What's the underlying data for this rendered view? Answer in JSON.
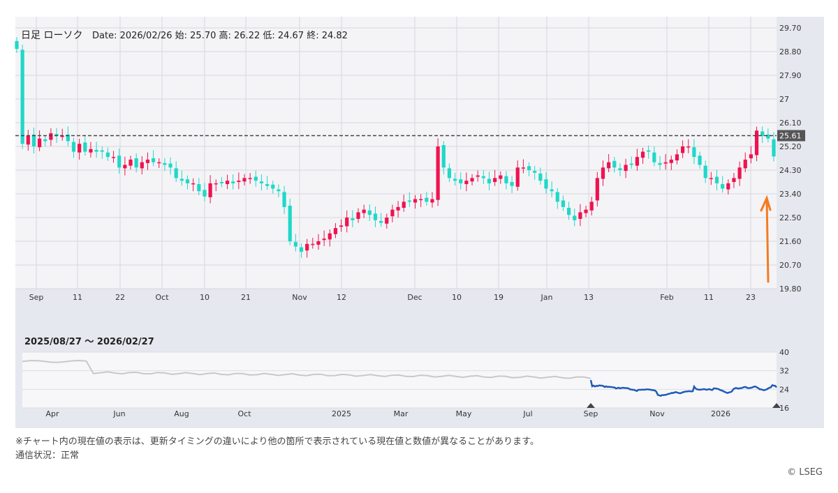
{
  "header": {
    "series_label": "日足 ローソク",
    "info": "Date: 2026/02/26 始: 25.70 高: 26.22 低: 24.67 終: 24.82"
  },
  "colors": {
    "up": "#f0124f",
    "down": "#1fd8c8",
    "overview_line": "#1e5bb8",
    "overview_history": "#c8c8c8",
    "current_line": "#444444",
    "arrow": "#f47b20"
  },
  "chart_data": [
    {
      "type": "candlestick",
      "title": "日足 ローソク",
      "x_ticks": [
        "Sep",
        "11",
        "22",
        "Oct",
        "10",
        "21",
        "Nov",
        "12",
        "Dec",
        "10",
        "19",
        "Jan",
        "13",
        "Feb",
        "11",
        "23"
      ],
      "y_ticks": [
        "29.70",
        "28.80",
        "27.90",
        "27",
        "26.10",
        "25.20",
        "24.30",
        "23.40",
        "22.50",
        "21.60",
        "20.70",
        "19.80"
      ],
      "ylim": [
        19.8,
        29.7
      ],
      "current_value": "25.61",
      "last_candle": {
        "date": "2026/02/26",
        "open": 25.7,
        "high": 26.22,
        "low": 24.67,
        "close": 24.82
      },
      "closes": [
        28.9,
        25.3,
        25.6,
        25.2,
        25.5,
        25.4,
        25.7,
        25.6,
        25.6,
        25.4,
        25.0,
        25.3,
        25.0,
        25.1,
        25.0,
        25.0,
        24.8,
        24.8,
        24.4,
        24.5,
        24.7,
        24.4,
        24.6,
        24.7,
        24.6,
        24.6,
        24.5,
        24.4,
        24.0,
        23.9,
        23.8,
        23.8,
        23.5,
        23.3,
        23.8,
        23.8,
        23.8,
        23.9,
        23.8,
        23.9,
        24.0,
        24.0,
        23.9,
        23.8,
        23.7,
        23.6,
        23.5,
        22.9,
        21.6,
        21.4,
        21.2,
        21.5,
        21.5,
        21.6,
        21.7,
        21.9,
        22.1,
        22.2,
        22.5,
        22.4,
        22.7,
        22.8,
        22.6,
        22.4,
        22.3,
        22.5,
        22.8,
        22.9,
        23.1,
        23.1,
        23.2,
        23.2,
        23.1,
        23.2,
        25.2,
        24.4,
        24.0,
        23.9,
        23.8,
        23.9,
        24.0,
        24.1,
        24.0,
        23.8,
        24.0,
        24.1,
        23.8,
        23.7,
        24.4,
        24.4,
        24.3,
        24.2,
        23.9,
        23.6,
        23.5,
        23.1,
        22.9,
        22.6,
        22.4,
        22.7,
        22.8,
        23.1,
        24.0,
        24.4,
        24.6,
        24.4,
        24.3,
        24.5,
        24.5,
        24.8,
        25.0,
        25.0,
        24.6,
        24.5,
        24.6,
        24.7,
        24.9,
        25.2,
        25.2,
        24.8,
        24.5,
        24.0,
        24.0,
        23.8,
        23.6,
        23.8,
        24.0,
        24.4,
        24.7,
        24.9,
        25.8,
        25.6,
        25.5,
        24.82
      ],
      "overview": {
        "range_label": "2025/08/27 〜 2026/02/27",
        "x_ticks": [
          "Apr",
          "Jun",
          "Aug",
          "Oct",
          "2025",
          "Mar",
          "May",
          "Jul",
          "Sep",
          "Nov",
          "2026"
        ],
        "y_ticks": [
          "40",
          "32",
          "24",
          "16"
        ],
        "ylim": [
          16,
          40
        ]
      }
    }
  ],
  "footer": {
    "disclaimer": "※チャート内の現在値の表示は、更新タイミングの違いにより他の箇所で表示されている現在値と数値が異なることがあります。",
    "status": "通信状況：正常",
    "copyright": "© LSEG"
  }
}
